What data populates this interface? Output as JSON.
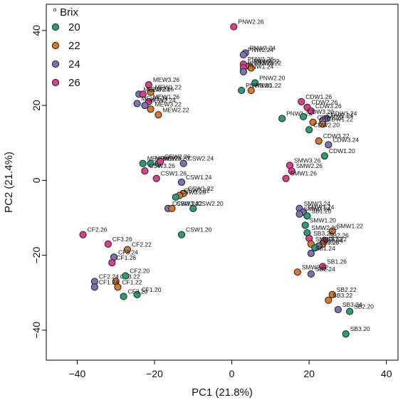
{
  "chart_data": {
    "type": "scatter",
    "xlabel": "PC1 (21.8%)",
    "ylabel": "PC2 (21.4%)",
    "xlim": [
      -48,
      43
    ],
    "ylim": [
      -48,
      47
    ],
    "xticks": [
      -40,
      -20,
      0,
      20,
      40
    ],
    "yticks": [
      -40,
      -20,
      0,
      20,
      40
    ],
    "legend": {
      "title": "° Brix",
      "placement": "top-left",
      "entries": [
        {
          "name": "20",
          "color": "#2a9d78"
        },
        {
          "name": "22",
          "color": "#d9772b"
        },
        {
          "name": "24",
          "color": "#7b73b3"
        },
        {
          "name": "26",
          "color": "#de3e8e"
        }
      ]
    },
    "colors": {
      "20": "#2a9d78",
      "22": "#d9772b",
      "24": "#7b73b3",
      "26": "#de3e8e"
    },
    "points": [
      {
        "label": "PNW2.26",
        "x": 0.5,
        "y": 41,
        "brix": "26"
      },
      {
        "label": "PNW3.24",
        "x": 3.5,
        "y": 34,
        "brix": "24"
      },
      {
        "label": "PNW2.24",
        "x": 3,
        "y": 33.5,
        "brix": "24"
      },
      {
        "label": "PNW1.26",
        "x": 3,
        "y": 31,
        "brix": "26"
      },
      {
        "label": "PNW2.22",
        "x": 4.5,
        "y": 30.5,
        "brix": "22"
      },
      {
        "label": "PNW3.26",
        "x": 3,
        "y": 30,
        "brix": "26"
      },
      {
        "label": "PNW3.22",
        "x": 5,
        "y": 30,
        "brix": "22"
      },
      {
        "label": "PNW1.24",
        "x": 3,
        "y": 29,
        "brix": "24"
      },
      {
        "label": "PNW2.20",
        "x": 6,
        "y": 26,
        "brix": "20"
      },
      {
        "label": "PNW3.20",
        "x": 2.5,
        "y": 24,
        "brix": "20"
      },
      {
        "label": "PNW1.22",
        "x": 5,
        "y": 24,
        "brix": "22"
      },
      {
        "label": "PNW1.20",
        "x": 13,
        "y": 16.5,
        "brix": "20"
      },
      {
        "label": "MEW3.26",
        "x": -21.5,
        "y": 25.5,
        "brix": "26"
      },
      {
        "label": "MEW1.22",
        "x": -21,
        "y": 23.5,
        "brix": "22"
      },
      {
        "label": "MEW3.24",
        "x": -24,
        "y": 23,
        "brix": "24"
      },
      {
        "label": "MEW2.26",
        "x": -23,
        "y": 23,
        "brix": "26"
      },
      {
        "label": "MEW1.26",
        "x": -21.5,
        "y": 21,
        "brix": "26"
      },
      {
        "label": "MEW1.24",
        "x": -24.5,
        "y": 20.5,
        "brix": "24"
      },
      {
        "label": "MEW2.24",
        "x": -22.5,
        "y": 20,
        "brix": "24"
      },
      {
        "label": "MEW3.22",
        "x": -21,
        "y": 19,
        "brix": "22"
      },
      {
        "label": "MEW2.22",
        "x": -19,
        "y": 17.5,
        "brix": "22"
      },
      {
        "label": "MEW2.20",
        "x": -21,
        "y": 4.5,
        "brix": "20"
      },
      {
        "label": "MEW1.20",
        "x": -23,
        "y": 4.5,
        "brix": "20"
      },
      {
        "label": "MEW3.20",
        "x": -19,
        "y": 4.5,
        "brix": "20"
      },
      {
        "label": "CSW2.26",
        "x": -18.5,
        "y": 5,
        "brix": "26"
      },
      {
        "label": "CSW2.24",
        "x": -12.5,
        "y": 4.5,
        "brix": "24"
      },
      {
        "label": "CSW3.26",
        "x": -22.5,
        "y": 2.5,
        "brix": "26"
      },
      {
        "label": "CSW1.26",
        "x": -19.5,
        "y": 0.5,
        "brix": "26"
      },
      {
        "label": "CSW1.24",
        "x": -13,
        "y": -0.5,
        "brix": "24"
      },
      {
        "label": "CSW1.22",
        "x": -12.5,
        "y": -3.5,
        "brix": "22"
      },
      {
        "label": "CSW2.22",
        "x": -13.5,
        "y": -4,
        "brix": "22"
      },
      {
        "label": "CSW3.20",
        "x": -14.5,
        "y": -4.5,
        "brix": "20"
      },
      {
        "label": "CSW3.24",
        "x": -16.5,
        "y": -7.5,
        "brix": "24"
      },
      {
        "label": "CSW2.20",
        "x": -10,
        "y": -7.5,
        "brix": "20"
      },
      {
        "label": "CSW3.22",
        "x": -15.5,
        "y": -7.5,
        "brix": "22"
      },
      {
        "label": "CSW1.20",
        "x": -13,
        "y": -14.5,
        "brix": "20"
      },
      {
        "label": "CF2.26",
        "x": -38.5,
        "y": -14.5,
        "brix": "26"
      },
      {
        "label": "CF3.26",
        "x": -32,
        "y": -17,
        "brix": "26"
      },
      {
        "label": "CF2.22",
        "x": -27,
        "y": -18.5,
        "brix": "22"
      },
      {
        "label": "CF3.24",
        "x": -30.5,
        "y": -20.5,
        "brix": "24"
      },
      {
        "label": "CF1.26",
        "x": -31,
        "y": -22,
        "brix": "26"
      },
      {
        "label": "CF3.22",
        "x": -30,
        "y": -27,
        "brix": "22"
      },
      {
        "label": "CF2.20",
        "x": -27.5,
        "y": -25.5,
        "brix": "20"
      },
      {
        "label": "CF2.24",
        "x": -35.5,
        "y": -27,
        "brix": "24"
      },
      {
        "label": "CF1.22",
        "x": -29.5,
        "y": -28.5,
        "brix": "22"
      },
      {
        "label": "CF1.24",
        "x": -35.5,
        "y": -28.5,
        "brix": "24"
      },
      {
        "label": "CF1.20",
        "x": -24.5,
        "y": -30.5,
        "brix": "20"
      },
      {
        "label": "CF3.20",
        "x": -28,
        "y": -31,
        "brix": "20"
      },
      {
        "label": "CDW1.26",
        "x": 18,
        "y": 21,
        "brix": "26"
      },
      {
        "label": "CDW2.26",
        "x": 19.5,
        "y": 19.5,
        "brix": "26"
      },
      {
        "label": "CDW3.26",
        "x": 20.5,
        "y": 18.5,
        "brix": "26"
      },
      {
        "label": "CDW3.20",
        "x": 18.5,
        "y": 17,
        "brix": "20"
      },
      {
        "label": "CDW1.24",
        "x": 24.5,
        "y": 16.5,
        "brix": "24"
      },
      {
        "label": "CDW2.24",
        "x": 23.5,
        "y": 16,
        "brix": "24"
      },
      {
        "label": "CDW2.22",
        "x": 21,
        "y": 15.5,
        "brix": "22"
      },
      {
        "label": "CDW1.22",
        "x": 23.5,
        "y": 15,
        "brix": "22"
      },
      {
        "label": "CDW2.20",
        "x": 20,
        "y": 13.5,
        "brix": "20"
      },
      {
        "label": "CDW3.22",
        "x": 22.5,
        "y": 10.5,
        "brix": "22"
      },
      {
        "label": "CDW3.24",
        "x": 25,
        "y": 9.5,
        "brix": "24"
      },
      {
        "label": "CDW1.20",
        "x": 24,
        "y": 6.5,
        "brix": "20"
      },
      {
        "label": "SMW3.26",
        "x": 15,
        "y": 4,
        "brix": "26"
      },
      {
        "label": "SMW2.26",
        "x": 15.5,
        "y": 2.5,
        "brix": "26"
      },
      {
        "label": "SMW1.26",
        "x": 14,
        "y": 0.5,
        "brix": "26"
      },
      {
        "label": "SMW3.24",
        "x": 17.5,
        "y": -7.5,
        "brix": "24"
      },
      {
        "label": "SMW1.24",
        "x": 18.5,
        "y": -8.5,
        "brix": "24"
      },
      {
        "label": "SMW2.24",
        "x": 17.5,
        "y": -9,
        "brix": "24"
      },
      {
        "label": "SB1.20",
        "x": 19.5,
        "y": -9.5,
        "brix": "20"
      },
      {
        "label": "SMW1.20",
        "x": 19,
        "y": -12,
        "brix": "20"
      },
      {
        "label": "SMW1.22",
        "x": 26,
        "y": -13.5,
        "brix": "22"
      },
      {
        "label": "SMW2.20",
        "x": 19.5,
        "y": -14,
        "brix": "20"
      },
      {
        "label": "SB3.26",
        "x": 20,
        "y": -15.5,
        "brix": "26"
      },
      {
        "label": "SB2.26",
        "x": 24,
        "y": -16,
        "brix": "26"
      },
      {
        "label": "SB1.22",
        "x": 23.5,
        "y": -17,
        "brix": "22"
      },
      {
        "label": "SMW3.22",
        "x": 20.5,
        "y": -17,
        "brix": "22"
      },
      {
        "label": "SB2.24",
        "x": 22.5,
        "y": -17.5,
        "brix": "24"
      },
      {
        "label": "SB3.20",
        "x": 21.5,
        "y": -18,
        "brix": "20"
      },
      {
        "label": "SB1.24",
        "x": 20.5,
        "y": -19.5,
        "brix": "24"
      },
      {
        "label": "SB1.26",
        "x": 23.5,
        "y": -23,
        "brix": "26"
      },
      {
        "label": "SMW2.22",
        "x": 17,
        "y": -24.5,
        "brix": "22"
      },
      {
        "label": "SB2.24",
        "x": 20.5,
        "y": -25,
        "brix": "24"
      },
      {
        "label": "SB2.22",
        "x": 26,
        "y": -30.5,
        "brix": "22"
      },
      {
        "label": "SB3.22",
        "x": 25,
        "y": -32,
        "brix": "22"
      },
      {
        "label": "SB3.24",
        "x": 27.5,
        "y": -34.5,
        "brix": "24"
      },
      {
        "label": "SB2.20",
        "x": 30.5,
        "y": -35,
        "brix": "20"
      },
      {
        "label": "SB3.20",
        "x": 29.5,
        "y": -41,
        "brix": "20"
      }
    ]
  }
}
